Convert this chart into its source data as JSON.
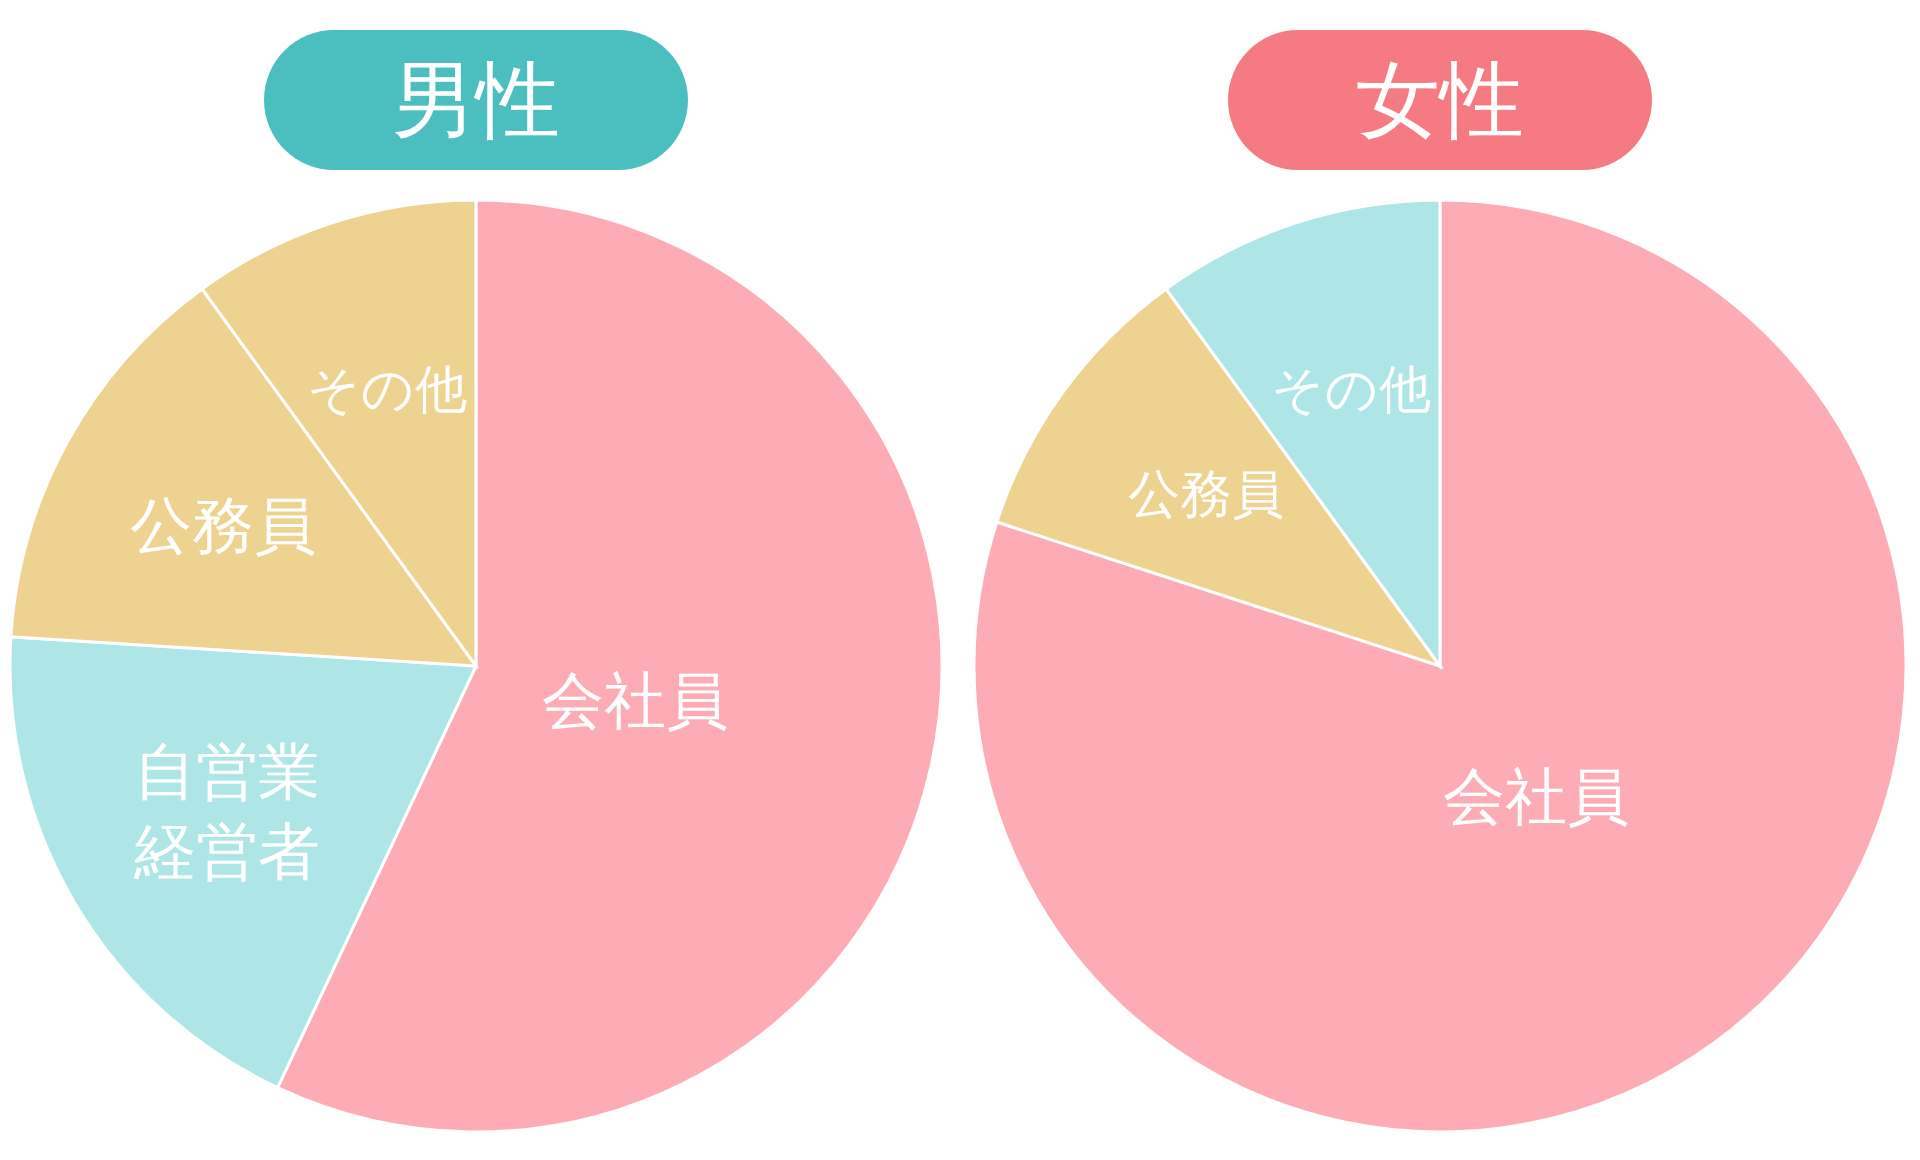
{
  "chart_data": [
    {
      "type": "pie",
      "title": "男性",
      "categories": [
        "会社員",
        "自営業経営者",
        "公務員",
        "その他"
      ],
      "values": [
        57,
        19,
        14,
        10
      ],
      "colors": [
        "#fdabb5",
        "#aee6e8",
        "#edd290",
        "#edd290"
      ]
    },
    {
      "type": "pie",
      "title": "女性",
      "categories": [
        "会社員",
        "公務員",
        "その他"
      ],
      "values": [
        80,
        10,
        10
      ],
      "colors": [
        "#fdabb5",
        "#edd290",
        "#aee6e8"
      ]
    }
  ]
}
